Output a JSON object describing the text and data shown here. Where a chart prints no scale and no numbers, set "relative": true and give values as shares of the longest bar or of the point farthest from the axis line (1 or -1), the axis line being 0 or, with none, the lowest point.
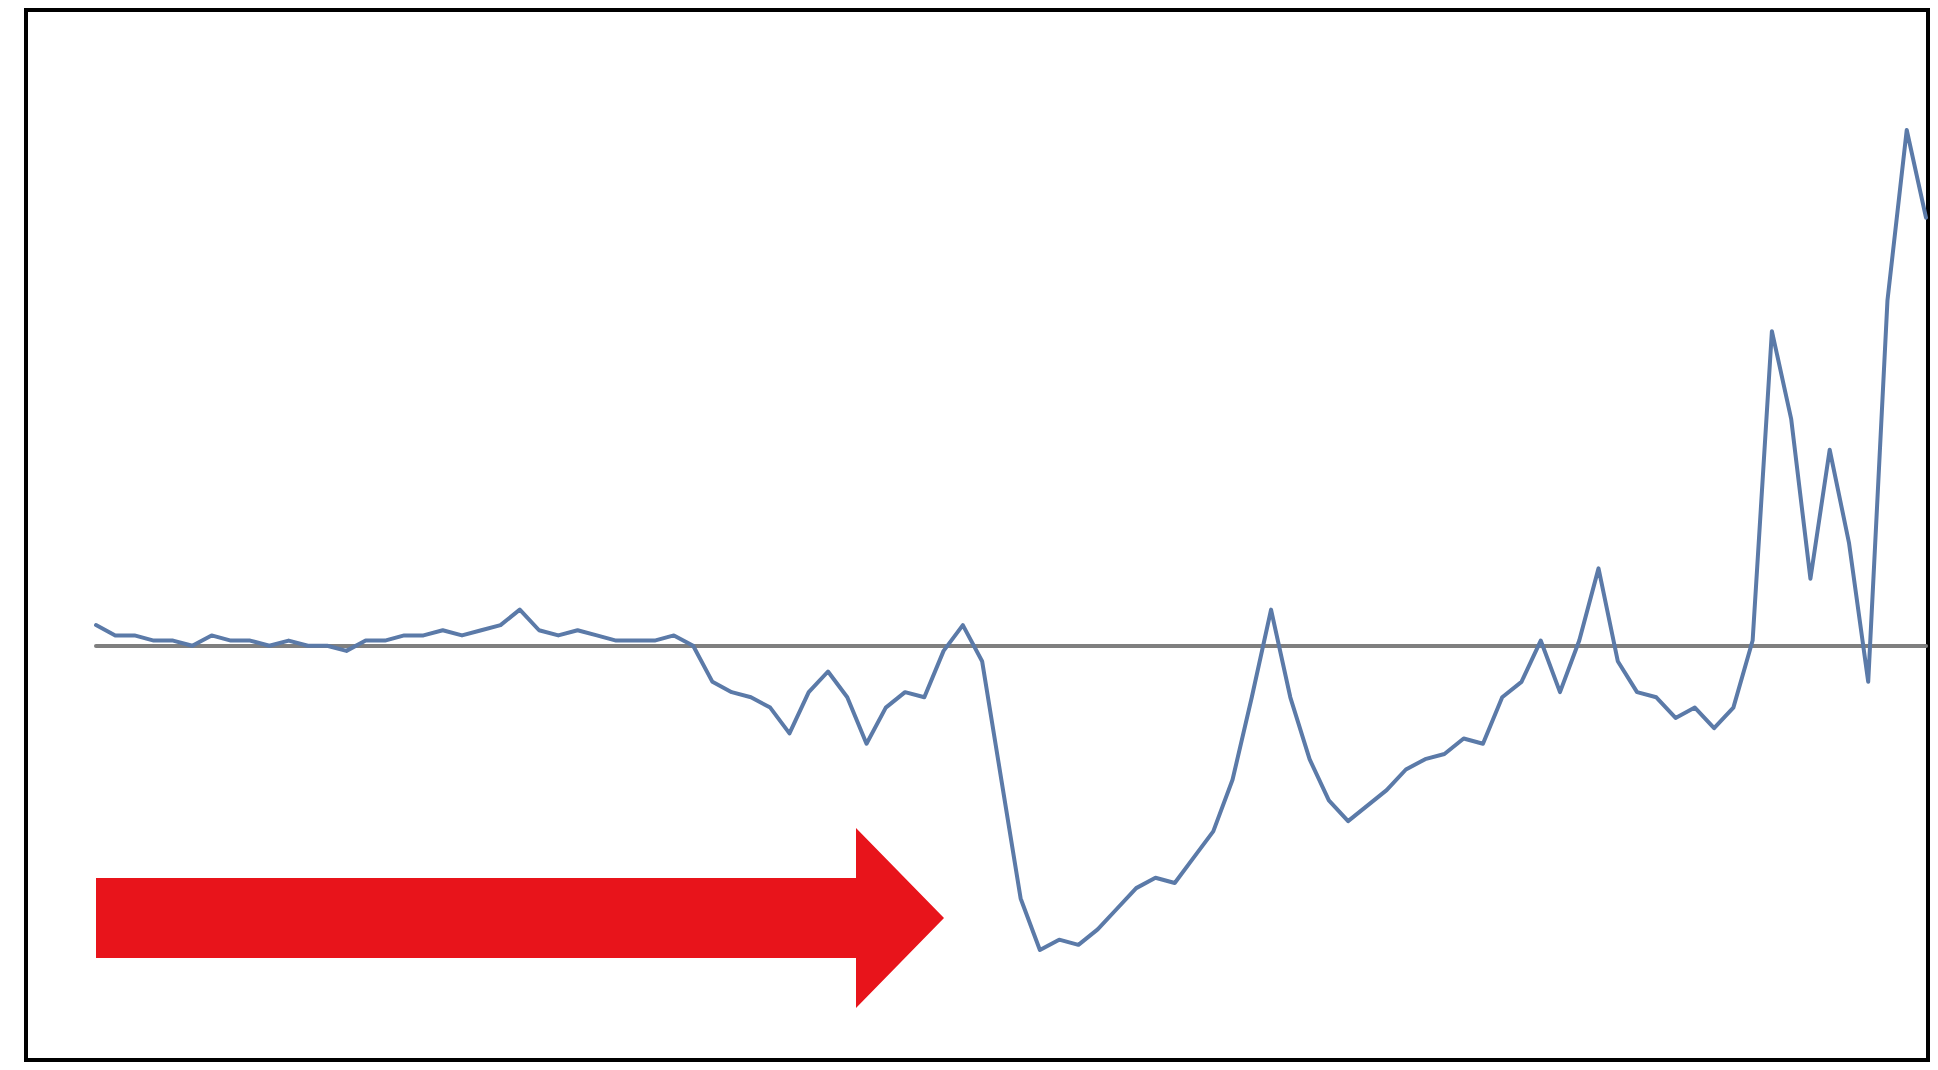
{
  "chart_data": {
    "type": "line",
    "relative": true,
    "marker": "none",
    "color": "#5b7aa8",
    "categories": [
      null,
      null,
      null,
      null,
      null,
      null,
      null,
      null,
      null,
      null,
      null,
      null,
      null,
      null,
      null,
      null,
      null,
      null,
      null,
      null,
      null,
      null,
      null,
      null,
      null,
      null,
      null,
      null,
      null,
      null,
      null,
      null,
      null,
      null,
      null,
      null,
      null,
      null,
      null,
      null,
      null,
      null,
      null,
      null,
      null,
      null,
      null,
      null,
      null,
      null,
      null,
      null,
      null,
      null,
      null,
      null,
      null,
      null,
      null,
      null,
      null,
      null,
      null,
      null,
      null,
      null,
      null,
      null,
      null,
      null,
      null,
      null,
      null,
      null,
      null,
      null,
      null,
      null,
      null,
      null,
      null,
      null,
      null,
      null,
      null,
      null,
      null,
      null,
      null,
      null,
      null,
      null,
      null,
      null,
      null,
      null
    ],
    "values": [
      0.04,
      0.02,
      0.02,
      0.01,
      0.01,
      0.0,
      0.02,
      0.01,
      0.01,
      0.0,
      0.01,
      0.0,
      0.0,
      -0.01,
      0.01,
      0.01,
      0.02,
      0.02,
      0.03,
      0.02,
      0.03,
      0.04,
      0.07,
      0.03,
      0.02,
      0.03,
      0.02,
      0.01,
      0.01,
      0.01,
      0.02,
      0.0,
      -0.07,
      -0.09,
      -0.1,
      -0.12,
      -0.17,
      -0.09,
      -0.05,
      -0.1,
      -0.19,
      -0.12,
      -0.09,
      -0.1,
      -0.01,
      0.04,
      -0.03,
      -0.26,
      -0.49,
      -0.59,
      -0.57,
      -0.58,
      -0.55,
      -0.51,
      -0.47,
      -0.45,
      -0.46,
      -0.41,
      -0.36,
      -0.26,
      -0.1,
      0.07,
      -0.1,
      -0.22,
      -0.3,
      -0.34,
      -0.31,
      -0.28,
      -0.24,
      -0.22,
      -0.21,
      -0.18,
      -0.19,
      -0.1,
      -0.07,
      0.01,
      -0.09,
      0.01,
      0.15,
      -0.03,
      -0.09,
      -0.1,
      -0.14,
      -0.12,
      -0.16,
      -0.12,
      0.01,
      0.61,
      0.44,
      0.13,
      0.38,
      0.2,
      -0.07,
      0.67,
      1,
      0.83
    ]
  }
}
